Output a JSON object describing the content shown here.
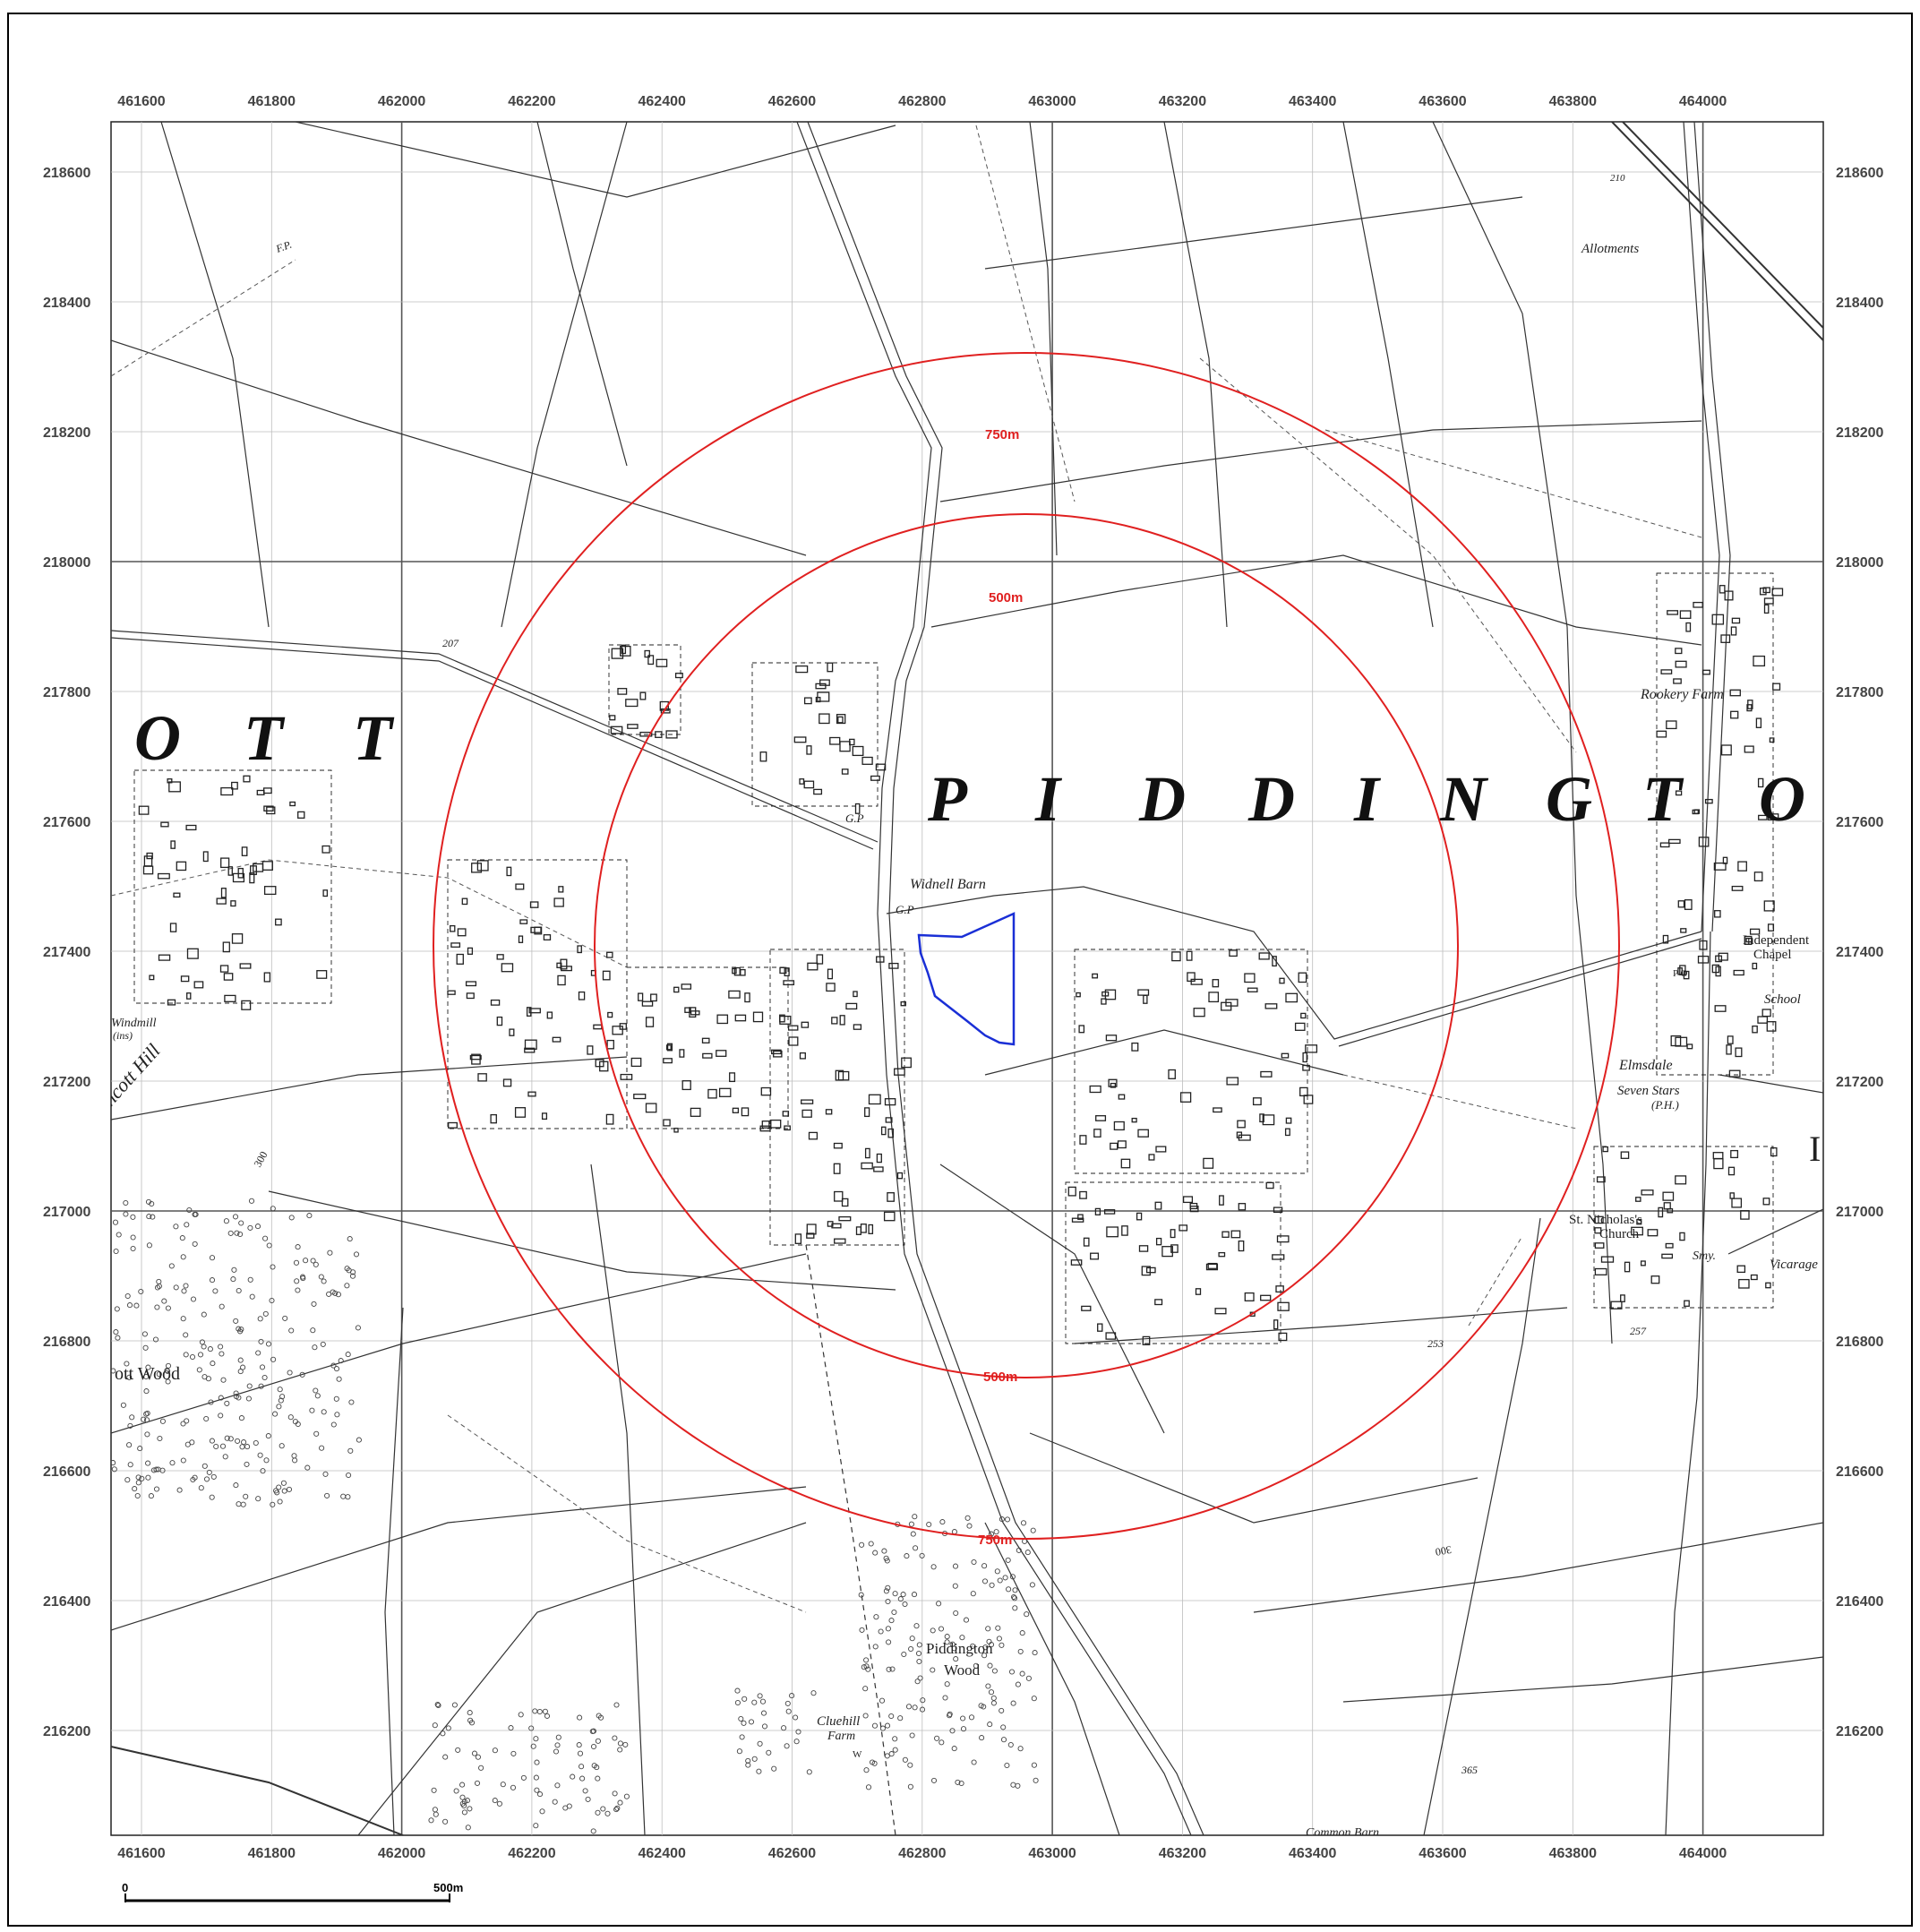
{
  "map": {
    "x_ticks": [
      "461600",
      "461800",
      "462000",
      "462200",
      "462400",
      "462600",
      "462800",
      "463000",
      "463200",
      "463400",
      "463600",
      "463800",
      "464000"
    ],
    "y_ticks": [
      "218600",
      "218400",
      "218200",
      "218000",
      "217800",
      "217600",
      "217400",
      "217200",
      "217000",
      "216800",
      "216600",
      "216400",
      "216200"
    ],
    "place_big_labels": {
      "left": [
        "O",
        "T",
        "T"
      ],
      "center": [
        "P",
        "I",
        "D",
        "D",
        "I",
        "N",
        "G",
        "T",
        "O"
      ]
    },
    "labels": {
      "widnell_barn": "Widnell Barn",
      "gp1": "G.P",
      "gp2": "G.P",
      "allotments": "Allotments",
      "rookery_farm": "Rookery Farm",
      "independent_chapel_1": "Independent",
      "independent_chapel_2": "Chapel",
      "school": "School",
      "po": "P O",
      "elmsdale": "Elmsdale",
      "seven_stars_1": "Seven Stars",
      "seven_stars_2": "(P.H.)",
      "st_nicholas_1": "St. Nicholas's",
      "st_nicholas_2": "Church",
      "smy": "Smy.",
      "vicarage": "Vicarage",
      "piddington_wood_1": "Piddington",
      "piddington_wood_2": "Wood",
      "cluehill_farm_1": "Cluehill",
      "cluehill_farm_2": "Farm",
      "common_barn": "Common Barn",
      "windmill_1": "Windmill",
      "windmill_2": "(ins)",
      "hill": "ncott Hill",
      "ott_wood": "ott  Wood",
      "w": "W",
      "fp": "F.P.",
      "spot_207": "207",
      "spot_210": "210",
      "spot_253": "253",
      "spot_257": "257",
      "spot_365": "365",
      "contour_300a": "300",
      "contour_300b": "300",
      "i_edge": "I"
    },
    "buffer_rings": [
      {
        "label": "750m",
        "radius_m": 750
      },
      {
        "label": "500m",
        "radius_m": 500
      }
    ],
    "ring_labels": {
      "r750_top": "750m",
      "r500_top": "500m",
      "r500_bottom": "500m",
      "r750_bottom": "750m"
    },
    "scale_bar": {
      "start": "0",
      "end": "500m"
    },
    "colors": {
      "buffer": "#e02020",
      "site": "#1a2fd6",
      "grid": "#bdbdbd",
      "major_grid": "#555555"
    }
  }
}
